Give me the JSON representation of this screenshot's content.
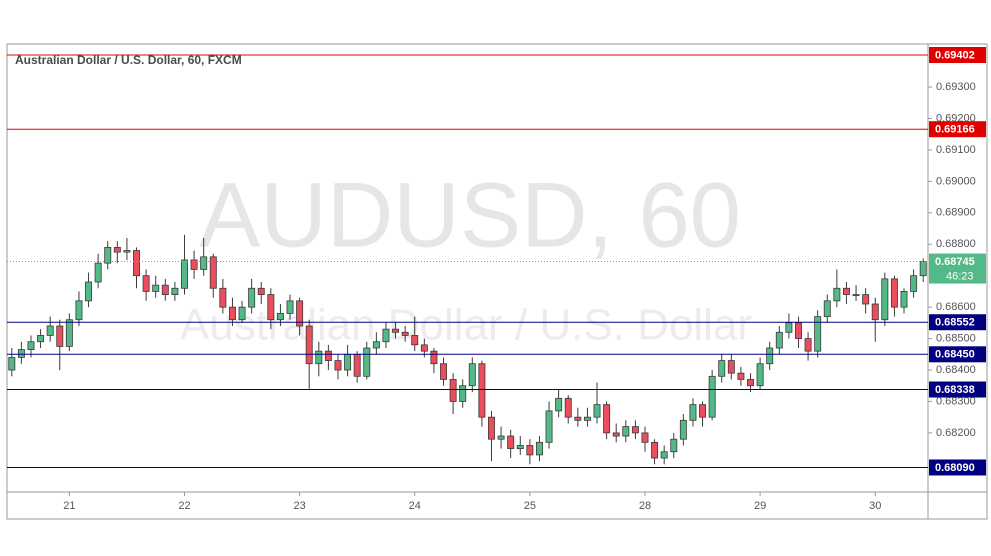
{
  "chart_data": {
    "type": "candlestick",
    "title": "Australian Dollar / U.S. Dollar, 60, FXCM",
    "watermark": {
      "title": "AUDUSD, 60",
      "subtitle": "Australian Dollar / U.S. Dollar"
    },
    "up_color": "#53b987",
    "down_color": "#eb4d5c",
    "xlim": [
      0,
      96
    ],
    "xticks": [
      {
        "value": 6.5,
        "label": "21"
      },
      {
        "value": 18.5,
        "label": "22"
      },
      {
        "value": 30.5,
        "label": "23"
      },
      {
        "value": 42.5,
        "label": "24"
      },
      {
        "value": 54.5,
        "label": "25"
      },
      {
        "value": 66.5,
        "label": "28"
      },
      {
        "value": 78.5,
        "label": "29"
      },
      {
        "value": 90.5,
        "label": "30"
      }
    ],
    "ylim": [
      0.68012,
      0.69437
    ],
    "yticks": [
      {
        "value": 0.682,
        "label": "0.68200"
      },
      {
        "value": 0.683,
        "label": "0.68300"
      },
      {
        "value": 0.684,
        "label": "0.68400"
      },
      {
        "value": 0.685,
        "label": "0.68500"
      },
      {
        "value": 0.686,
        "label": "0.68600"
      },
      {
        "value": 0.688,
        "label": "0.68800"
      },
      {
        "value": 0.689,
        "label": "0.68900"
      },
      {
        "value": 0.69,
        "label": "0.69000"
      },
      {
        "value": 0.691,
        "label": "0.69100"
      },
      {
        "value": 0.692,
        "label": "0.69200"
      },
      {
        "value": 0.693,
        "label": "0.69300"
      }
    ],
    "levels": [
      {
        "value": 0.69402,
        "label": "0.69402",
        "color": "#e00000"
      },
      {
        "value": 0.69166,
        "label": "0.69166",
        "color": "#e00000"
      },
      {
        "value": 0.68552,
        "label": "0.68552",
        "color": "#000080"
      },
      {
        "value": 0.6845,
        "label": "0.68450",
        "color": "#000080"
      },
      {
        "value": 0.68338,
        "label": "0.68338",
        "color": "#000080"
      },
      {
        "value": 0.6809,
        "label": "0.68090",
        "color": "#000080"
      }
    ],
    "last_price": {
      "value": 0.68745,
      "label": "0.68745",
      "countdown": "46:23",
      "color": "#53b987"
    },
    "candles": [
      [
        0.684,
        0.6847,
        0.6838,
        0.6844
      ],
      [
        0.6844,
        0.6849,
        0.6842,
        0.68465
      ],
      [
        0.68465,
        0.6851,
        0.6844,
        0.6849
      ],
      [
        0.6849,
        0.6853,
        0.6847,
        0.6851
      ],
      [
        0.6851,
        0.6857,
        0.6849,
        0.6854
      ],
      [
        0.6854,
        0.6856,
        0.684,
        0.68475
      ],
      [
        0.68475,
        0.6858,
        0.6846,
        0.6856
      ],
      [
        0.6856,
        0.6865,
        0.6854,
        0.6862
      ],
      [
        0.6862,
        0.6871,
        0.686,
        0.6868
      ],
      [
        0.6868,
        0.6877,
        0.6866,
        0.6874
      ],
      [
        0.6874,
        0.6881,
        0.6872,
        0.6879
      ],
      [
        0.6879,
        0.6881,
        0.6874,
        0.68775
      ],
      [
        0.68775,
        0.6882,
        0.6875,
        0.6878
      ],
      [
        0.6878,
        0.6879,
        0.6866,
        0.687
      ],
      [
        0.687,
        0.6872,
        0.6862,
        0.6865
      ],
      [
        0.6865,
        0.687,
        0.6863,
        0.6867
      ],
      [
        0.6867,
        0.6869,
        0.6862,
        0.6864
      ],
      [
        0.6864,
        0.6868,
        0.6862,
        0.6866
      ],
      [
        0.6866,
        0.6883,
        0.6864,
        0.6875
      ],
      [
        0.6875,
        0.6878,
        0.6869,
        0.6872
      ],
      [
        0.6872,
        0.6882,
        0.687,
        0.6876
      ],
      [
        0.6876,
        0.6877,
        0.6863,
        0.6866
      ],
      [
        0.6866,
        0.6869,
        0.6858,
        0.686
      ],
      [
        0.686,
        0.6863,
        0.6854,
        0.6856
      ],
      [
        0.6856,
        0.6862,
        0.6855,
        0.686
      ],
      [
        0.686,
        0.6869,
        0.6858,
        0.6866
      ],
      [
        0.6866,
        0.6868,
        0.6861,
        0.6864
      ],
      [
        0.6864,
        0.6866,
        0.6853,
        0.6856
      ],
      [
        0.6856,
        0.6861,
        0.6854,
        0.6858
      ],
      [
        0.6858,
        0.6864,
        0.6856,
        0.6862
      ],
      [
        0.6862,
        0.6863,
        0.6851,
        0.6854
      ],
      [
        0.6854,
        0.6856,
        0.6834,
        0.6842
      ],
      [
        0.6842,
        0.6849,
        0.6838,
        0.6846
      ],
      [
        0.6846,
        0.6848,
        0.684,
        0.6843
      ],
      [
        0.6843,
        0.6845,
        0.6837,
        0.684
      ],
      [
        0.684,
        0.6848,
        0.6838,
        0.6845
      ],
      [
        0.6845,
        0.6846,
        0.6836,
        0.6838
      ],
      [
        0.6838,
        0.6849,
        0.6837,
        0.6847
      ],
      [
        0.6847,
        0.6852,
        0.6845,
        0.6849
      ],
      [
        0.6849,
        0.6855,
        0.6847,
        0.6853
      ],
      [
        0.6853,
        0.6855,
        0.685,
        0.6852
      ],
      [
        0.6852,
        0.6854,
        0.6849,
        0.6851
      ],
      [
        0.6851,
        0.6857,
        0.6846,
        0.6848
      ],
      [
        0.6848,
        0.685,
        0.6844,
        0.6846
      ],
      [
        0.6846,
        0.6847,
        0.6839,
        0.6842
      ],
      [
        0.6842,
        0.6844,
        0.6835,
        0.6837
      ],
      [
        0.6837,
        0.6839,
        0.6826,
        0.683
      ],
      [
        0.683,
        0.6837,
        0.6828,
        0.6835
      ],
      [
        0.6835,
        0.6844,
        0.6833,
        0.6842
      ],
      [
        0.6842,
        0.6843,
        0.6822,
        0.6825
      ],
      [
        0.6825,
        0.6827,
        0.6811,
        0.6818
      ],
      [
        0.6818,
        0.6822,
        0.6815,
        0.6819
      ],
      [
        0.6819,
        0.6821,
        0.6812,
        0.6815
      ],
      [
        0.6815,
        0.6819,
        0.6813,
        0.6816
      ],
      [
        0.6816,
        0.6818,
        0.681,
        0.6813
      ],
      [
        0.6813,
        0.6819,
        0.6811,
        0.6817
      ],
      [
        0.6817,
        0.683,
        0.6815,
        0.6827
      ],
      [
        0.6827,
        0.6834,
        0.6825,
        0.6831
      ],
      [
        0.6831,
        0.6832,
        0.6823,
        0.6825
      ],
      [
        0.6825,
        0.6828,
        0.6822,
        0.6824
      ],
      [
        0.6824,
        0.6828,
        0.6822,
        0.6825
      ],
      [
        0.6825,
        0.6836,
        0.6823,
        0.6829
      ],
      [
        0.6829,
        0.683,
        0.6818,
        0.682
      ],
      [
        0.682,
        0.6823,
        0.6817,
        0.6819
      ],
      [
        0.6819,
        0.6824,
        0.6817,
        0.6822
      ],
      [
        0.6822,
        0.6824,
        0.6818,
        0.682
      ],
      [
        0.682,
        0.6822,
        0.6814,
        0.6817
      ],
      [
        0.6817,
        0.6818,
        0.681,
        0.6812
      ],
      [
        0.6812,
        0.6816,
        0.681,
        0.6814
      ],
      [
        0.6814,
        0.682,
        0.6812,
        0.6818
      ],
      [
        0.6818,
        0.6826,
        0.6816,
        0.6824
      ],
      [
        0.6824,
        0.6831,
        0.6822,
        0.6829
      ],
      [
        0.6829,
        0.683,
        0.6822,
        0.6825
      ],
      [
        0.6825,
        0.684,
        0.6824,
        0.6838
      ],
      [
        0.6838,
        0.6845,
        0.6836,
        0.6843
      ],
      [
        0.6843,
        0.6845,
        0.6837,
        0.6839
      ],
      [
        0.6839,
        0.6841,
        0.6835,
        0.6837
      ],
      [
        0.6837,
        0.6839,
        0.6833,
        0.6835
      ],
      [
        0.6835,
        0.6844,
        0.6834,
        0.6842
      ],
      [
        0.6842,
        0.6849,
        0.684,
        0.6847
      ],
      [
        0.6847,
        0.6854,
        0.6845,
        0.6852
      ],
      [
        0.6852,
        0.6858,
        0.685,
        0.6855
      ],
      [
        0.6855,
        0.6857,
        0.6847,
        0.685
      ],
      [
        0.685,
        0.6852,
        0.6843,
        0.6846
      ],
      [
        0.6846,
        0.6859,
        0.6844,
        0.6857
      ],
      [
        0.6857,
        0.6864,
        0.6855,
        0.6862
      ],
      [
        0.6862,
        0.6872,
        0.686,
        0.6866
      ],
      [
        0.6866,
        0.6868,
        0.6861,
        0.6864
      ],
      [
        0.6864,
        0.6867,
        0.6862,
        0.6864
      ],
      [
        0.6864,
        0.6866,
        0.6858,
        0.6861
      ],
      [
        0.6861,
        0.6863,
        0.6849,
        0.6856
      ],
      [
        0.6856,
        0.6871,
        0.6854,
        0.6869
      ],
      [
        0.6869,
        0.687,
        0.6857,
        0.686
      ],
      [
        0.686,
        0.6866,
        0.6858,
        0.6865
      ],
      [
        0.6865,
        0.6872,
        0.6863,
        0.687
      ],
      [
        0.687,
        0.68755,
        0.6868,
        0.68745
      ]
    ]
  }
}
